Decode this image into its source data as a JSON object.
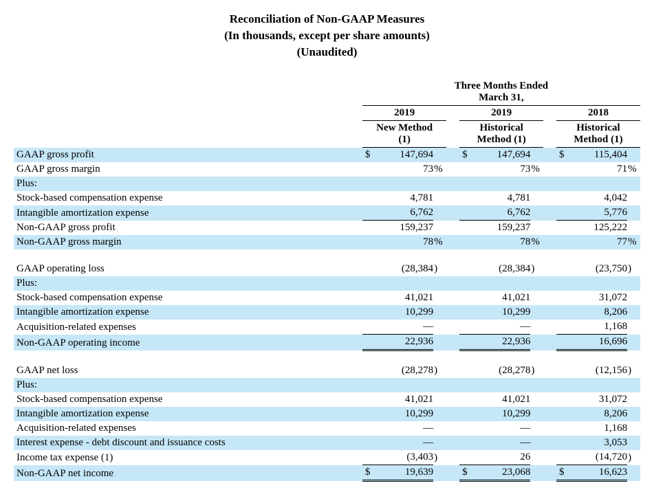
{
  "title": {
    "line1": "Reconciliation of Non-GAAP Measures",
    "line2": "(In thousands, except per share amounts)",
    "line3": "(Unaudited)"
  },
  "period_header": "Three Months Ended March 31,",
  "columns": [
    {
      "year": "2019",
      "label1": "New Method",
      "label2": "(1)"
    },
    {
      "year": "2019",
      "label1": "Historical",
      "label2": "Method (1)"
    },
    {
      "year": "2018",
      "label1": "Historical",
      "label2": "Method (1)"
    }
  ],
  "rows": [
    {
      "label": "GAAP gross profit",
      "stripe": true,
      "cur": "$",
      "vals": [
        "147,694",
        "147,694",
        "115,404"
      ],
      "suf": [
        "",
        "",
        ""
      ]
    },
    {
      "label": "GAAP gross margin",
      "vals": [
        "73",
        "73",
        "71"
      ],
      "suf": [
        "%",
        "%",
        "%"
      ]
    },
    {
      "label": "Plus:",
      "stripe": true,
      "vals": [
        "",
        "",
        ""
      ],
      "suf": [
        "",
        "",
        ""
      ]
    },
    {
      "label": "Stock-based compensation expense",
      "vals": [
        "4,781",
        "4,781",
        "4,042"
      ],
      "suf": [
        "",
        "",
        ""
      ]
    },
    {
      "label": "Intangible amortization expense",
      "stripe": true,
      "underline": true,
      "vals": [
        "6,762",
        "6,762",
        "5,776"
      ],
      "suf": [
        "",
        "",
        ""
      ]
    },
    {
      "label": "Non-GAAP gross profit",
      "vals": [
        "159,237",
        "159,237",
        "125,222"
      ],
      "suf": [
        "",
        "",
        ""
      ]
    },
    {
      "label": "Non-GAAP gross margin",
      "stripe": true,
      "vals": [
        "78",
        "78",
        "77"
      ],
      "suf": [
        "%",
        "%",
        "%"
      ]
    },
    {
      "spacer": true
    },
    {
      "label": "GAAP operating loss",
      "vals": [
        "(28,384",
        "(28,384",
        "(23,750"
      ],
      "suf": [
        ")",
        ")",
        ")"
      ]
    },
    {
      "label": "Plus:",
      "stripe": true,
      "vals": [
        "",
        "",
        ""
      ],
      "suf": [
        "",
        "",
        ""
      ]
    },
    {
      "label": "Stock-based compensation expense",
      "vals": [
        "41,021",
        "41,021",
        "31,072"
      ],
      "suf": [
        "",
        "",
        ""
      ]
    },
    {
      "label": "Intangible amortization expense",
      "stripe": true,
      "vals": [
        "10,299",
        "10,299",
        "8,206"
      ],
      "suf": [
        "",
        "",
        ""
      ]
    },
    {
      "label": "Acquisition-related expenses",
      "underline": true,
      "vals": [
        "—",
        "—",
        "1,168"
      ],
      "suf": [
        "",
        "",
        ""
      ]
    },
    {
      "label": "Non-GAAP operating income",
      "stripe": true,
      "double": true,
      "vals": [
        "22,936",
        "22,936",
        "16,696"
      ],
      "suf": [
        "",
        "",
        ""
      ]
    },
    {
      "spacer": true
    },
    {
      "label": "GAAP net loss",
      "vals": [
        "(28,278",
        "(28,278",
        "(12,156"
      ],
      "suf": [
        ")",
        ")",
        ")"
      ]
    },
    {
      "label": "Plus:",
      "stripe": true,
      "vals": [
        "",
        "",
        ""
      ],
      "suf": [
        "",
        "",
        ""
      ]
    },
    {
      "label": "Stock-based compensation expense",
      "vals": [
        "41,021",
        "41,021",
        "31,072"
      ],
      "suf": [
        "",
        "",
        ""
      ]
    },
    {
      "label": "Intangible amortization expense",
      "stripe": true,
      "vals": [
        "10,299",
        "10,299",
        "8,206"
      ],
      "suf": [
        "",
        "",
        ""
      ]
    },
    {
      "label": "Acquisition-related expenses",
      "vals": [
        "—",
        "—",
        "1,168"
      ],
      "suf": [
        "",
        "",
        ""
      ]
    },
    {
      "label": "Interest expense - debt discount and issuance costs",
      "stripe": true,
      "vals": [
        "—",
        "—",
        "3,053"
      ],
      "suf": [
        "",
        "",
        ""
      ]
    },
    {
      "label": "Income tax expense (1)",
      "underline": true,
      "vals": [
        "(3,403",
        "26",
        "(14,720"
      ],
      "suf": [
        ")",
        "",
        ")"
      ]
    },
    {
      "label": "Non-GAAP net income",
      "stripe": true,
      "double": true,
      "cur": "$",
      "vals": [
        "19,639",
        "23,068",
        "16,623"
      ],
      "suf": [
        "",
        "",
        ""
      ]
    }
  ]
}
